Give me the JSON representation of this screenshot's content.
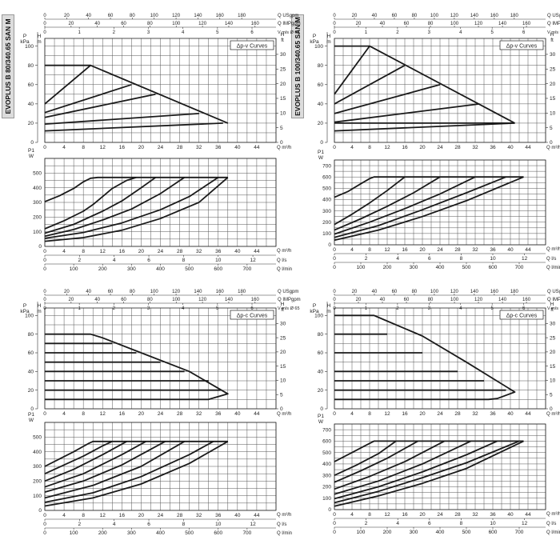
{
  "series_titles": [
    "EVOPLUS B 80/340.65 SAN M",
    "EVOPLUS B 100/340.65 SAN M"
  ],
  "labels": {
    "q_usgpm": "Q USgpm",
    "q_imp": "Q IMPgpm",
    "v": "V m/s Ø 65",
    "p_kpa": "P kPa",
    "h_m": "H m",
    "h_ft": "H ft",
    "q_m3h": "Q m³/h",
    "p1_w": "P1 W",
    "q_ls": "Q l/s",
    "q_lmin": "Q l/min",
    "dpv": "Δp-v Curves",
    "dpc": "Δp-c Curves"
  },
  "scales": {
    "usgpm": [
      0,
      20,
      40,
      60,
      80,
      100,
      120,
      140,
      160,
      180
    ],
    "imp": [
      0,
      20,
      40,
      60,
      80,
      100,
      120,
      140,
      160
    ],
    "v": [
      0,
      1,
      2,
      3,
      4,
      5,
      6
    ],
    "q_m3h": [
      0,
      4,
      8,
      12,
      16,
      20,
      24,
      28,
      32,
      36,
      40,
      44
    ],
    "ls": [
      0,
      2,
      4,
      6,
      8,
      10,
      12
    ],
    "lmin": [
      0,
      100,
      200,
      300,
      400,
      500,
      600,
      700
    ]
  },
  "chart_data": [
    {
      "id": "80-dpv",
      "type": "line",
      "title": "EVOPLUS B 80/340.65 SAN M",
      "legend": "Δp-v Curves",
      "xlabel": "Q m³/h",
      "ylabel": "P kPa / H m",
      "xlim": [
        0,
        48
      ],
      "ylim": [
        0,
        10
      ],
      "y_ticks_kpa": [
        0,
        20,
        40,
        60,
        80,
        100
      ],
      "y_ticks_ft": [
        0,
        5,
        10,
        15,
        20,
        25,
        30
      ],
      "series": [
        {
          "x": [
            0,
            9.5,
            38
          ],
          "y": [
            4,
            8,
            2
          ]
        },
        {
          "x": [
            0,
            9.5
          ],
          "y": [
            8,
            8
          ]
        },
        {
          "x": [
            0,
            18
          ],
          "y": [
            3.1,
            6
          ]
        },
        {
          "x": [
            0,
            23
          ],
          "y": [
            2.6,
            5
          ]
        },
        {
          "x": [
            0,
            32
          ],
          "y": [
            1.9,
            3
          ]
        },
        {
          "x": [
            0,
            37
          ],
          "y": [
            1.2,
            2
          ]
        }
      ]
    },
    {
      "id": "80-p1v",
      "type": "line",
      "title": "",
      "xlabel": "Q m³/h",
      "ylabel": "P1 W",
      "xlim": [
        0,
        48
      ],
      "ylim": [
        0,
        600
      ],
      "y_ticks": [
        0,
        100,
        200,
        300,
        400,
        500
      ],
      "series": [
        {
          "x": [
            0,
            3,
            6,
            8,
            9.5,
            11,
            38
          ],
          "y": [
            305,
            345,
            395,
            440,
            465,
            470,
            470
          ]
        },
        {
          "x": [
            0,
            4,
            8,
            10,
            12,
            14,
            17,
            19
          ],
          "y": [
            120,
            175,
            240,
            285,
            340,
            395,
            450,
            470
          ]
        },
        {
          "x": [
            0,
            6,
            12,
            16,
            20,
            23
          ],
          "y": [
            90,
            150,
            240,
            310,
            400,
            470
          ]
        },
        {
          "x": [
            0,
            6,
            12,
            18,
            24,
            29
          ],
          "y": [
            70,
            115,
            180,
            255,
            360,
            470
          ]
        },
        {
          "x": [
            0,
            8,
            16,
            24,
            30,
            36
          ],
          "y": [
            55,
            95,
            160,
            250,
            340,
            470
          ]
        },
        {
          "x": [
            0,
            8,
            16,
            24,
            32,
            38
          ],
          "y": [
            35,
            60,
            110,
            190,
            300,
            470
          ]
        }
      ]
    },
    {
      "id": "100-dpv",
      "type": "line",
      "title": "EVOPLUS B 100/340.65 SAN M",
      "legend": "Δp-v Curves",
      "xlabel": "Q m³/h",
      "ylabel": "P kPa / H m",
      "xlim": [
        0,
        48
      ],
      "ylim": [
        0,
        10
      ],
      "y_ticks_kpa": [
        0,
        20,
        40,
        60,
        80,
        100
      ],
      "y_ticks_ft": [
        0,
        5,
        10,
        15,
        20,
        25,
        30
      ],
      "series": [
        {
          "x": [
            0,
            8,
            41
          ],
          "y": [
            5,
            10,
            2
          ]
        },
        {
          "x": [
            0,
            8
          ],
          "y": [
            10,
            10
          ]
        },
        {
          "x": [
            0,
            16
          ],
          "y": [
            4,
            8
          ]
        },
        {
          "x": [
            0,
            24
          ],
          "y": [
            3,
            6
          ]
        },
        {
          "x": [
            0,
            33
          ],
          "y": [
            2.1,
            4
          ]
        },
        {
          "x": [
            0,
            41
          ],
          "y": [
            1.2,
            2
          ]
        },
        {
          "x": [
            0,
            41
          ],
          "y": [
            2,
            2
          ]
        }
      ]
    },
    {
      "id": "100-p1v",
      "type": "line",
      "title": "",
      "xlabel": "Q m³/h",
      "ylabel": "P1 W",
      "xlim": [
        0,
        48
      ],
      "ylim": [
        0,
        750
      ],
      "y_ticks": [
        0,
        100,
        200,
        300,
        400,
        500,
        600,
        700
      ],
      "series": [
        {
          "x": [
            0,
            3,
            6,
            8,
            9,
            43
          ],
          "y": [
            420,
            470,
            540,
            585,
            600,
            600
          ]
        },
        {
          "x": [
            0,
            4,
            8,
            12,
            16
          ],
          "y": [
            180,
            270,
            370,
            480,
            600
          ]
        },
        {
          "x": [
            0,
            6,
            12,
            18,
            24
          ],
          "y": [
            130,
            230,
            340,
            460,
            600
          ]
        },
        {
          "x": [
            0,
            8,
            16,
            24,
            32
          ],
          "y": [
            95,
            200,
            320,
            450,
            600
          ]
        },
        {
          "x": [
            0,
            10,
            20,
            30,
            39
          ],
          "y": [
            65,
            170,
            310,
            460,
            600
          ]
        },
        {
          "x": [
            0,
            10,
            20,
            30,
            43
          ],
          "y": [
            40,
            130,
            250,
            390,
            600
          ]
        }
      ]
    },
    {
      "id": "80-dpc",
      "type": "line",
      "title": "",
      "legend": "Δp-c Curves",
      "xlabel": "Q m³/h",
      "ylabel": "P kPa / H m",
      "xlim": [
        0,
        48
      ],
      "ylim": [
        0,
        10
      ],
      "y_ticks_kpa": [
        0,
        20,
        40,
        60,
        80,
        100
      ],
      "y_ticks_ft": [
        0,
        5,
        10,
        15,
        20,
        25,
        30
      ],
      "series": [
        {
          "x": [
            0,
            8,
            9.5,
            12,
            20,
            30,
            38,
            34,
            0
          ],
          "y": [
            8,
            8,
            8,
            7.6,
            6,
            4,
            1.6,
            1,
            1
          ]
        },
        {
          "x": [
            0,
            14
          ],
          "y": [
            7,
            7
          ]
        },
        {
          "x": [
            0,
            19
          ],
          "y": [
            6,
            6
          ]
        },
        {
          "x": [
            0,
            24
          ],
          "y": [
            5,
            5
          ]
        },
        {
          "x": [
            0,
            29
          ],
          "y": [
            4,
            4
          ]
        },
        {
          "x": [
            0,
            34
          ],
          "y": [
            3,
            3
          ]
        },
        {
          "x": [
            0,
            36.5
          ],
          "y": [
            2,
            2
          ]
        }
      ]
    },
    {
      "id": "80-p1c",
      "type": "line",
      "title": "",
      "xlabel": "Q m³/h",
      "ylabel": "P1 W",
      "xlim": [
        0,
        48
      ],
      "ylim": [
        0,
        600
      ],
      "y_ticks": [
        0,
        100,
        200,
        300,
        400,
        500
      ],
      "series": [
        {
          "x": [
            0,
            3,
            6,
            9,
            10,
            38
          ],
          "y": [
            300,
            350,
            400,
            455,
            470,
            470
          ]
        },
        {
          "x": [
            0,
            4,
            8,
            12,
            14
          ],
          "y": [
            250,
            310,
            370,
            440,
            470
          ]
        },
        {
          "x": [
            0,
            6,
            12,
            17
          ],
          "y": [
            200,
            280,
            380,
            470
          ]
        },
        {
          "x": [
            0,
            8,
            16,
            21
          ],
          "y": [
            160,
            250,
            380,
            470
          ]
        },
        {
          "x": [
            0,
            8,
            16,
            25
          ],
          "y": [
            125,
            200,
            310,
            470
          ]
        },
        {
          "x": [
            0,
            10,
            20,
            29
          ],
          "y": [
            85,
            170,
            300,
            470
          ]
        },
        {
          "x": [
            0,
            10,
            20,
            30,
            35
          ],
          "y": [
            55,
            120,
            230,
            380,
            470
          ]
        },
        {
          "x": [
            0,
            10,
            20,
            30,
            38
          ],
          "y": [
            30,
            85,
            180,
            320,
            470
          ]
        }
      ]
    },
    {
      "id": "100-dpc",
      "type": "line",
      "title": "",
      "legend": "Δp-c Curves",
      "xlabel": "Q m³/h",
      "ylabel": "P kPa / H m",
      "xlim": [
        0,
        48
      ],
      "ylim": [
        0,
        10
      ],
      "y_ticks_kpa": [
        0,
        20,
        40,
        60,
        80,
        100
      ],
      "y_ticks_ft": [
        0,
        5,
        10,
        15,
        20,
        25,
        30
      ],
      "series": [
        {
          "x": [
            0,
            8,
            9,
            11,
            20,
            30,
            41,
            37,
            35,
            0
          ],
          "y": [
            10,
            10,
            10,
            9.6,
            7.8,
            5,
            1.8,
            1.1,
            1,
            1
          ]
        },
        {
          "x": [
            0,
            12
          ],
          "y": [
            8,
            8
          ]
        },
        {
          "x": [
            0,
            20
          ],
          "y": [
            6,
            6
          ]
        },
        {
          "x": [
            0,
            28
          ],
          "y": [
            4,
            4
          ]
        },
        {
          "x": [
            0,
            34
          ],
          "y": [
            3,
            3
          ]
        },
        {
          "x": [
            0,
            39
          ],
          "y": [
            2,
            2
          ]
        }
      ]
    },
    {
      "id": "100-p1c",
      "type": "line",
      "title": "",
      "xlabel": "Q m³/h",
      "ylabel": "P1 W",
      "xlim": [
        0,
        48
      ],
      "ylim": [
        0,
        750
      ],
      "y_ticks": [
        0,
        100,
        200,
        300,
        400,
        500,
        600,
        700
      ],
      "series": [
        {
          "x": [
            0,
            4,
            7,
            9,
            43
          ],
          "y": [
            420,
            500,
            560,
            600,
            600
          ]
        },
        {
          "x": [
            0,
            5,
            10,
            14
          ],
          "y": [
            300,
            390,
            490,
            600
          ]
        },
        {
          "x": [
            0,
            6,
            12,
            19
          ],
          "y": [
            240,
            340,
            450,
            600
          ]
        },
        {
          "x": [
            0,
            8,
            16,
            25
          ],
          "y": [
            180,
            290,
            420,
            600
          ]
        },
        {
          "x": [
            0,
            10,
            20,
            31
          ],
          "y": [
            135,
            250,
            400,
            600
          ]
        },
        {
          "x": [
            0,
            10,
            20,
            30,
            37
          ],
          "y": [
            95,
            200,
            330,
            480,
            600
          ]
        },
        {
          "x": [
            0,
            10,
            20,
            30,
            42
          ],
          "y": [
            60,
            160,
            280,
            410,
            600
          ]
        },
        {
          "x": [
            0,
            10,
            20,
            30,
            43
          ],
          "y": [
            30,
            120,
            230,
            360,
            600
          ]
        }
      ]
    }
  ]
}
